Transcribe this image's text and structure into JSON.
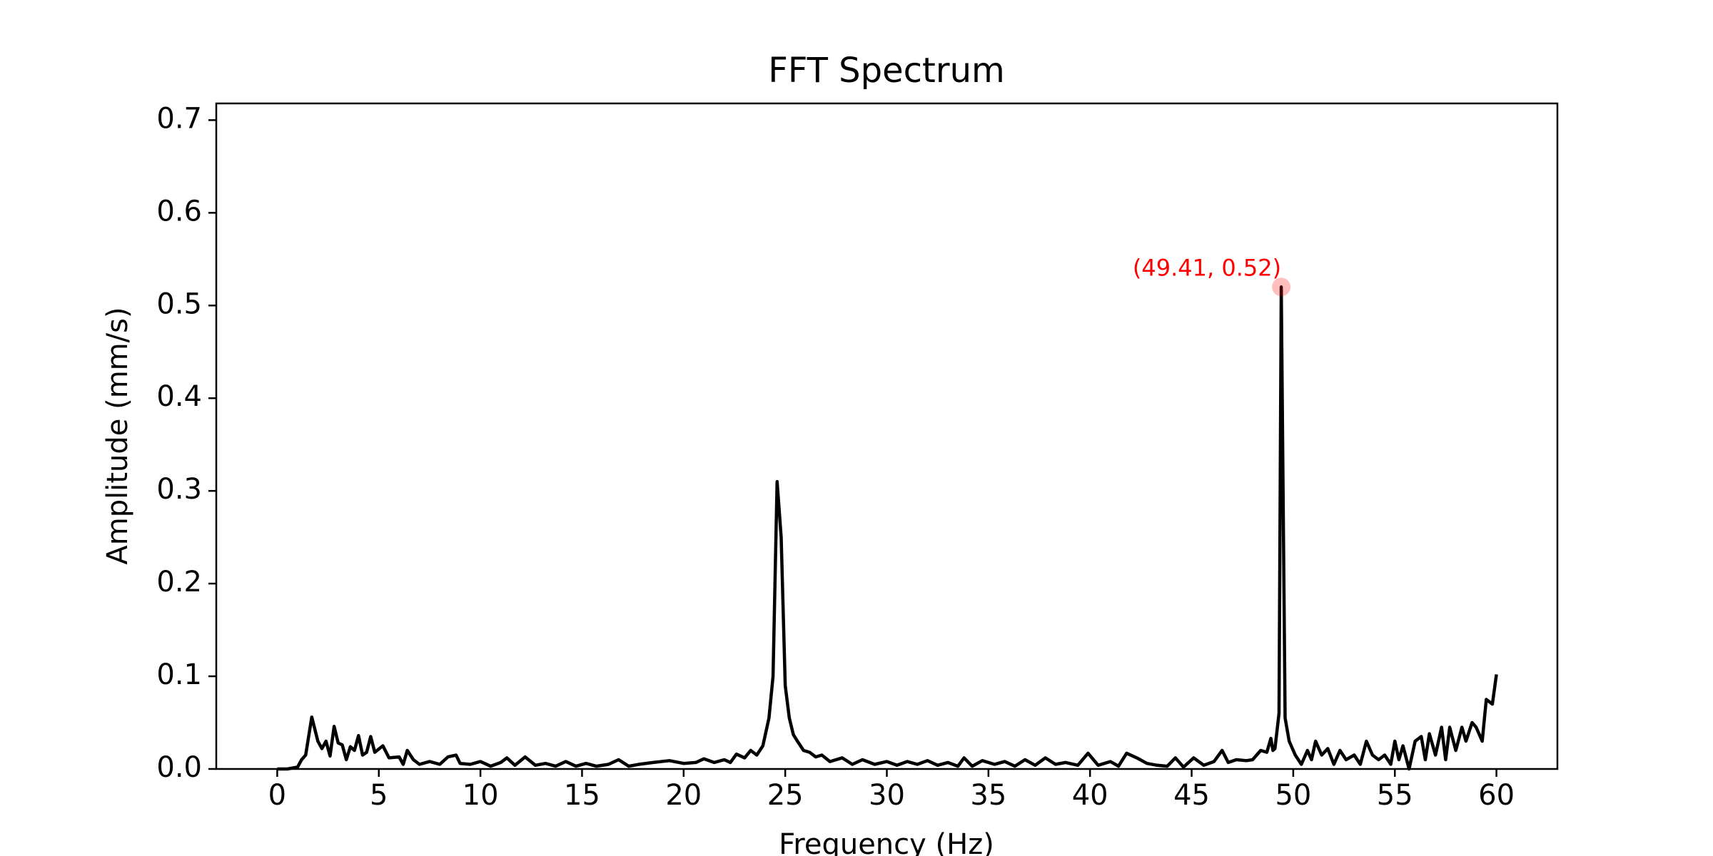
{
  "chart_data": {
    "type": "line",
    "title": "FFT Spectrum",
    "x_label": "Frequency (Hz)",
    "y_label": "Amplitude (mm/s)",
    "xlim": [
      -3,
      63
    ],
    "xticks": [
      0,
      5,
      10,
      15,
      20,
      25,
      30,
      35,
      40,
      45,
      50,
      55,
      60
    ],
    "ylim": [
      0,
      0.718
    ],
    "yticks": [
      {
        "value": 0,
        "label": "0.0"
      },
      0.1,
      0.2,
      0.3,
      0.4,
      0.5,
      0.6,
      0.7
    ],
    "grid": false,
    "series": [
      {
        "color": "#000000",
        "x": [
          0,
          0.5,
          1.0,
          1.2,
          1.4,
          1.7,
          2.0,
          2.2,
          2.4,
          2.6,
          2.8,
          3.0,
          3.2,
          3.4,
          3.6,
          3.8,
          4.0,
          4.2,
          4.4,
          4.6,
          4.8,
          5.2,
          5.5,
          6.0,
          6.2,
          6.4,
          6.7,
          7.0,
          7.5,
          8.0,
          8.4,
          8.8,
          9.0,
          9.5,
          10.0,
          10.5,
          11.0,
          11.3,
          11.7,
          12.2,
          12.7,
          13.2,
          13.7,
          14.2,
          14.7,
          15.2,
          15.7,
          16.3,
          16.8,
          17.3,
          17.8,
          18.5,
          19.3,
          20.0,
          20.6,
          21.0,
          21.5,
          22.0,
          22.3,
          22.6,
          23.0,
          23.3,
          23.6,
          23.9,
          24.2,
          24.4,
          24.6,
          24.8,
          25.0,
          25.2,
          25.4,
          25.6,
          25.9,
          26.2,
          26.5,
          26.8,
          27.2,
          27.8,
          28.3,
          28.8,
          29.4,
          30.0,
          30.5,
          31.0,
          31.5,
          32.0,
          32.5,
          33.0,
          33.5,
          33.8,
          34.2,
          34.7,
          35.3,
          35.8,
          36.3,
          36.8,
          37.3,
          37.8,
          38.3,
          38.8,
          39.4,
          39.9,
          40.4,
          41.0,
          41.4,
          41.8,
          42.3,
          42.8,
          43.3,
          43.8,
          44.2,
          44.6,
          45.1,
          45.6,
          46.1,
          46.5,
          46.8,
          47.2,
          47.7,
          48.0,
          48.4,
          48.7,
          48.9,
          49.0,
          49.1,
          49.3,
          49.41,
          49.6,
          49.8,
          50.1,
          50.4,
          50.7,
          50.9,
          51.1,
          51.4,
          51.7,
          52.0,
          52.3,
          52.6,
          53.0,
          53.3,
          53.6,
          53.9,
          54.2,
          54.5,
          54.8,
          55.0,
          55.2,
          55.4,
          55.7,
          56.0,
          56.3,
          56.5,
          56.7,
          57.0,
          57.3,
          57.5,
          57.7,
          58.0,
          58.3,
          58.5,
          58.8,
          59.0,
          59.3,
          59.5,
          59.8,
          60.0
        ],
        "values": [
          0,
          0,
          0.002,
          0.01,
          0.015,
          0.056,
          0.03,
          0.022,
          0.03,
          0.014,
          0.046,
          0.028,
          0.026,
          0.01,
          0.024,
          0.02,
          0.036,
          0.015,
          0.018,
          0.035,
          0.018,
          0.025,
          0.012,
          0.013,
          0.005,
          0.02,
          0.01,
          0.005,
          0.008,
          0.005,
          0.013,
          0.015,
          0.006,
          0.005,
          0.008,
          0.003,
          0.007,
          0.012,
          0.004,
          0.013,
          0.004,
          0.006,
          0.003,
          0.008,
          0.003,
          0.006,
          0.003,
          0.005,
          0.01,
          0.003,
          0.005,
          0.007,
          0.009,
          0.006,
          0.007,
          0.011,
          0.007,
          0.01,
          0.007,
          0.016,
          0.012,
          0.02,
          0.015,
          0.025,
          0.055,
          0.1,
          0.31,
          0.25,
          0.09,
          0.055,
          0.037,
          0.03,
          0.02,
          0.018,
          0.013,
          0.015,
          0.008,
          0.012,
          0.005,
          0.01,
          0.005,
          0.008,
          0.004,
          0.008,
          0.005,
          0.009,
          0.004,
          0.007,
          0.003,
          0.012,
          0.003,
          0.009,
          0.005,
          0.008,
          0.003,
          0.01,
          0.004,
          0.012,
          0.005,
          0.007,
          0.004,
          0.017,
          0.004,
          0.008,
          0.003,
          0.017,
          0.012,
          0.006,
          0.004,
          0.003,
          0.012,
          0.002,
          0.012,
          0.004,
          0.008,
          0.02,
          0.007,
          0.01,
          0.009,
          0.01,
          0.02,
          0.018,
          0.033,
          0.02,
          0.022,
          0.06,
          0.52,
          0.055,
          0.03,
          0.015,
          0.005,
          0.02,
          0.01,
          0.03,
          0.015,
          0.022,
          0.005,
          0.02,
          0.01,
          0.015,
          0.005,
          0.03,
          0.015,
          0.01,
          0.015,
          0.005,
          0.03,
          0.01,
          0.025,
          0,
          0.03,
          0.035,
          0.01,
          0.038,
          0.015,
          0.045,
          0.01,
          0.045,
          0.02,
          0.045,
          0.03,
          0.05,
          0.045,
          0.03,
          0.075,
          0.07,
          0.102
        ]
      }
    ],
    "annotations": [
      {
        "text": "(49.41, 0.52)",
        "x": 49.41,
        "y": 0.52,
        "color": "#ff0000"
      }
    ]
  }
}
